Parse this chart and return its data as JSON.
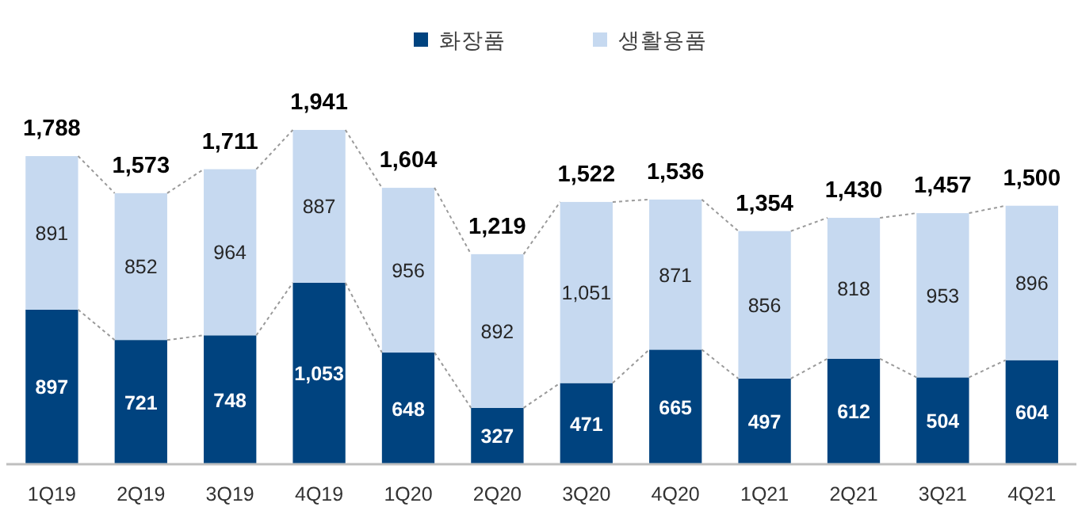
{
  "chart_data": {
    "type": "bar",
    "stacked": true,
    "categories": [
      "1Q19",
      "2Q19",
      "3Q19",
      "4Q19",
      "1Q20",
      "2Q20",
      "3Q20",
      "4Q20",
      "1Q21",
      "2Q21",
      "3Q21",
      "4Q21"
    ],
    "series": [
      {
        "name": "화장품",
        "color": "#00437f",
        "values": [
          897,
          721,
          748,
          1053,
          648,
          327,
          471,
          665,
          497,
          612,
          504,
          604
        ],
        "value_labels": [
          "897",
          "721",
          "748",
          "1,053",
          "648",
          "327",
          "471",
          "665",
          "497",
          "612",
          "504",
          "604"
        ]
      },
      {
        "name": "생활용품",
        "color": "#c6d9f0",
        "values": [
          891,
          852,
          964,
          887,
          956,
          892,
          1051,
          871,
          856,
          818,
          953,
          896
        ],
        "value_labels": [
          "891",
          "852",
          "964",
          "887",
          "956",
          "892",
          "1,051",
          "871",
          "856",
          "818",
          "953",
          "896"
        ]
      }
    ],
    "totals": [
      "1,788",
      "1,573",
      "1,711",
      "1,941",
      "1,604",
      "1,219",
      "1,522",
      "1,536",
      "1,354",
      "1,430",
      "1,457",
      "1,500"
    ],
    "legend": "top"
  }
}
